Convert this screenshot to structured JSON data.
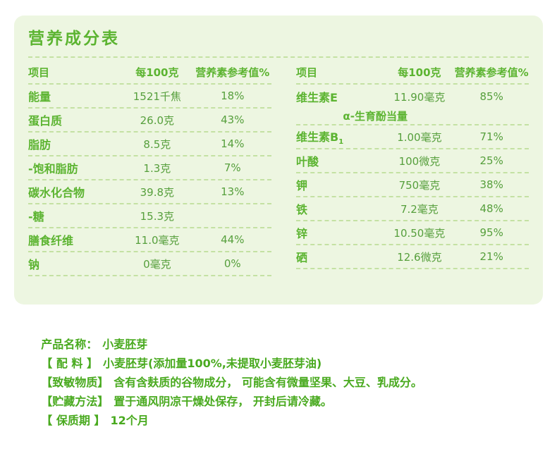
{
  "title": "营养成分表",
  "colors": {
    "title": "#5cb431",
    "label": "#5cb431",
    "value": "#569f3c",
    "divider": "#c4e1a3",
    "info": "#49aa1f",
    "card": "#edf6e1"
  },
  "left_table": {
    "headers": {
      "item": "项目",
      "amount": "每100克",
      "nrv": "营养素参考值%"
    },
    "rows": [
      {
        "name": "能量",
        "amount": "1521千焦",
        "nrv": "18%"
      },
      {
        "name": "蛋白质",
        "amount": "26.0克",
        "nrv": "43%"
      },
      {
        "name": "脂肪",
        "amount": "8.5克",
        "nrv": "14%"
      },
      {
        "name": "-饱和脂肪",
        "amount": "1.3克",
        "nrv": "7%"
      },
      {
        "name": "碳水化合物",
        "amount": "39.8克",
        "nrv": "13%"
      },
      {
        "name": "-糖",
        "amount": "15.3克",
        "nrv": ""
      },
      {
        "name": "膳食纤维",
        "amount": "11.0毫克",
        "nrv": "44%"
      },
      {
        "name": "钠",
        "amount": "0毫克",
        "nrv": "0%"
      }
    ]
  },
  "right_table": {
    "headers": {
      "item": "项目",
      "amount": "每100克",
      "nrv": "营养素参考值%"
    },
    "rows": [
      {
        "name": "维生素E",
        "sub": "α-生育酚当量",
        "amount": "11.90毫克",
        "nrv": "85%"
      },
      {
        "name": "维生素B",
        "name_sub": "1",
        "amount": "1.00毫克",
        "nrv": "71%"
      },
      {
        "name": "叶酸",
        "amount": "100微克",
        "nrv": "25%"
      },
      {
        "name": "钾",
        "amount": "750毫克",
        "nrv": "38%"
      },
      {
        "name": "铁",
        "amount": "7.2毫克",
        "nrv": "48%"
      },
      {
        "name": "锌",
        "amount": "10.50毫克",
        "nrv": "95%"
      },
      {
        "name": "硒",
        "amount": "12.6微克",
        "nrv": "21%"
      }
    ]
  },
  "info": {
    "lines": [
      {
        "label": "产品名称：",
        "text": "小麦胚芽"
      },
      {
        "label": "【 配 料 】",
        "text": "小麦胚芽(添加量100%,未提取小麦胚芽油)"
      },
      {
        "label": "【致敏物质】",
        "text": "含有含麸质的谷物成分， 可能含有微量坚果、大豆、乳成分。"
      },
      {
        "label": "【贮藏方法】",
        "text": "置于通风阴凉干燥处保存， 开封后请冷藏。"
      },
      {
        "label": "【 保质期 】",
        "text": "12个月"
      }
    ]
  }
}
